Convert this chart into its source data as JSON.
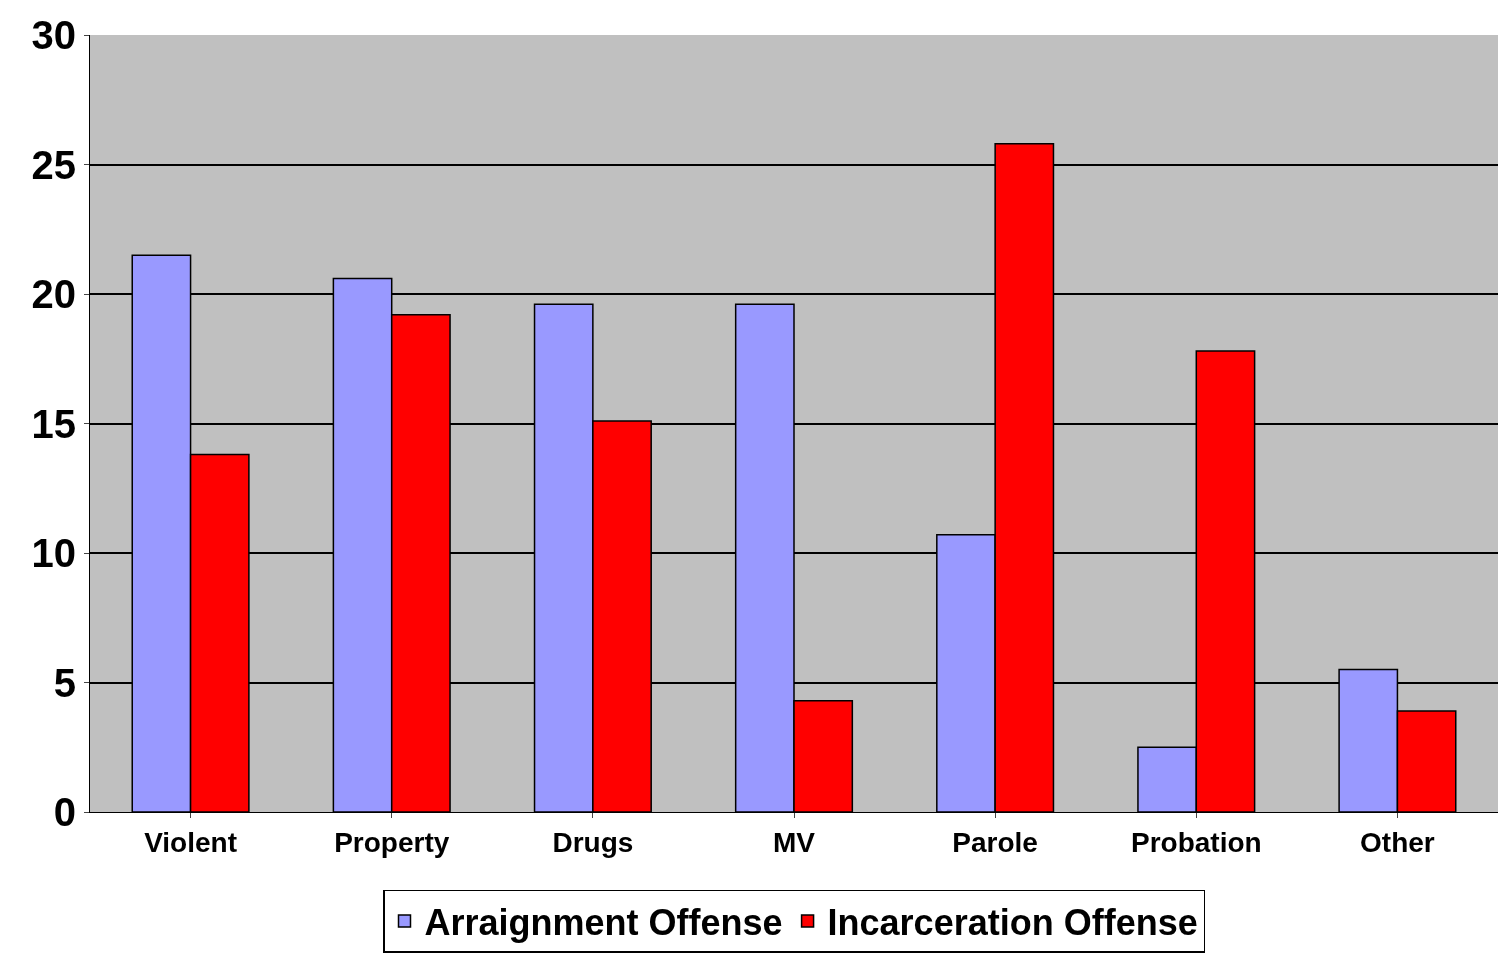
{
  "chart_data": {
    "type": "bar",
    "categories": [
      "Violent",
      "Property",
      "Drugs",
      "MV",
      "Parole",
      "Probation",
      "Other"
    ],
    "series": [
      {
        "name": "Arraignment Offense",
        "color": "#9999ff",
        "values": [
          21.5,
          20.6,
          19.6,
          19.6,
          10.7,
          2.5,
          5.5
        ]
      },
      {
        "name": "Incarceration Offense",
        "color": "#ff0000",
        "values": [
          13.8,
          19.2,
          15.1,
          4.3,
          25.8,
          17.8,
          3.9
        ]
      }
    ],
    "ylim": [
      0,
      30
    ],
    "yticks": [
      0,
      5,
      10,
      15,
      20,
      25,
      30
    ],
    "grid": "y",
    "legend": "bottom"
  }
}
